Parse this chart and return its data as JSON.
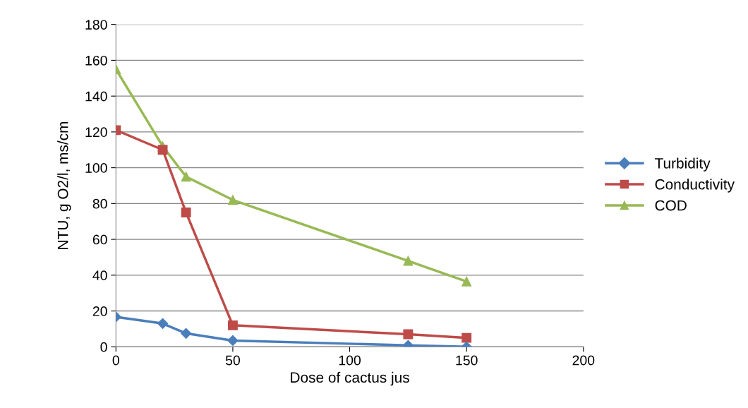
{
  "chart_data": {
    "type": "line",
    "xlabel": "Dose of cactus jus",
    "ylabel": "NTU, g O2/l, ms/cm",
    "xlim": [
      0,
      200
    ],
    "xticks": [
      0,
      50,
      100,
      150,
      200
    ],
    "ylim": [
      0,
      180
    ],
    "yticks": [
      0,
      20,
      40,
      60,
      80,
      100,
      120,
      140,
      160,
      180
    ],
    "grid": "y",
    "legend": "right",
    "line_style": "solid",
    "series": [
      {
        "name": "Turbidity",
        "color": "#4a7ebb",
        "marker": "diamond",
        "x": [
          0,
          20,
          30,
          50,
          125,
          150
        ],
        "values": [
          16.7,
          13,
          7.5,
          3.5,
          0.8,
          0
        ]
      },
      {
        "name": "Conductivity",
        "color": "#be4b48",
        "marker": "square",
        "x": [
          0,
          20,
          30,
          50,
          125,
          150
        ],
        "values": [
          121,
          110,
          75,
          12,
          7,
          5
        ]
      },
      {
        "name": "COD",
        "color": "#98b954",
        "marker": "triangle",
        "x": [
          0,
          20,
          30,
          50,
          125,
          150
        ],
        "values": [
          155,
          112,
          95,
          82,
          48,
          36.5
        ]
      }
    ]
  }
}
